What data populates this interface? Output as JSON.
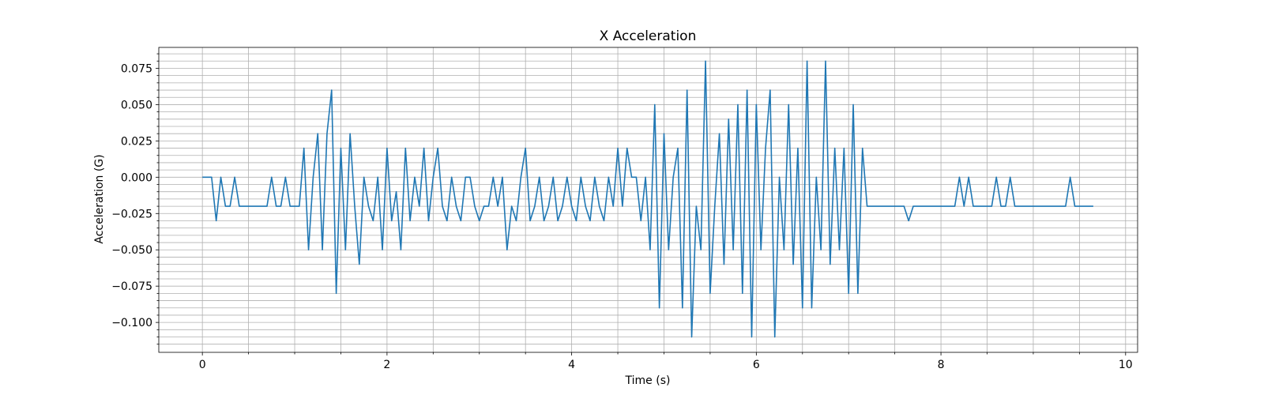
{
  "chart_data": {
    "type": "line",
    "title": "X Acceleration",
    "xlabel": "Time (s)",
    "ylabel": "Acceleration (G)",
    "x": [
      0,
      0.05,
      0.1,
      0.15,
      0.2,
      0.25,
      0.3,
      0.35,
      0.4,
      0.45,
      0.5,
      0.55,
      0.6,
      0.65,
      0.7,
      0.75,
      0.8,
      0.85,
      0.9,
      0.95,
      1,
      1.05,
      1.1,
      1.15,
      1.2,
      1.25,
      1.3,
      1.35,
      1.4,
      1.45,
      1.5,
      1.55,
      1.6,
      1.65,
      1.7,
      1.75,
      1.8,
      1.85,
      1.9,
      1.95,
      2,
      2.05,
      2.1,
      2.15,
      2.2,
      2.25,
      2.3,
      2.35,
      2.4,
      2.45,
      2.5,
      2.55,
      2.6,
      2.65,
      2.7,
      2.75,
      2.8,
      2.85,
      2.9,
      2.95,
      3,
      3.05,
      3.1,
      3.15,
      3.2,
      3.25,
      3.3,
      3.35,
      3.4,
      3.45,
      3.5,
      3.55,
      3.6,
      3.65,
      3.7,
      3.75,
      3.8,
      3.85,
      3.9,
      3.95,
      4,
      4.05,
      4.1,
      4.15,
      4.2,
      4.25,
      4.3,
      4.35,
      4.4,
      4.45,
      4.5,
      4.55,
      4.6,
      4.65,
      4.7,
      4.75,
      4.8,
      4.85,
      4.9,
      4.95,
      5,
      5.05,
      5.1,
      5.15,
      5.2,
      5.25,
      5.3,
      5.35,
      5.4,
      5.45,
      5.5,
      5.55,
      5.6,
      5.65,
      5.7,
      5.75,
      5.8,
      5.85,
      5.9,
      5.95,
      6,
      6.05,
      6.1,
      6.15,
      6.2,
      6.25,
      6.3,
      6.35,
      6.4,
      6.45,
      6.5,
      6.55,
      6.6,
      6.65,
      6.7,
      6.75,
      6.8,
      6.85,
      6.9,
      6.95,
      7,
      7.05,
      7.1,
      7.15,
      7.2,
      7.25,
      7.3,
      7.35,
      7.4,
      7.45,
      7.5,
      7.55,
      7.6,
      7.65,
      7.7,
      7.75,
      7.8,
      7.85,
      7.9,
      7.95,
      8,
      8.05,
      8.1,
      8.15,
      8.2,
      8.25,
      8.3,
      8.35,
      8.4,
      8.45,
      8.5,
      8.55,
      8.6,
      8.65,
      8.7,
      8.75,
      8.8,
      8.85,
      8.9,
      8.95,
      9,
      9.05,
      9.1,
      9.15,
      9.2,
      9.25,
      9.3,
      9.35,
      9.4,
      9.45,
      9.5,
      9.55,
      9.6,
      9.65
    ],
    "series": [
      {
        "color": "#1f77b4",
        "values": [
          0,
          0,
          0,
          -0.03,
          0,
          -0.02,
          -0.02,
          0,
          -0.02,
          -0.02,
          -0.02,
          -0.02,
          -0.02,
          -0.02,
          -0.02,
          0,
          -0.02,
          -0.02,
          0,
          -0.02,
          -0.02,
          -0.02,
          0.02,
          -0.05,
          0,
          0.03,
          -0.05,
          0.03,
          0.06,
          -0.08,
          0.02,
          -0.05,
          0.03,
          -0.02,
          -0.06,
          0,
          -0.02,
          -0.03,
          0,
          -0.05,
          0.02,
          -0.03,
          -0.01,
          -0.05,
          0.02,
          -0.03,
          0,
          -0.02,
          0.02,
          -0.03,
          0,
          0.02,
          -0.02,
          -0.03,
          0,
          -0.02,
          -0.03,
          0,
          0,
          -0.02,
          -0.03,
          -0.02,
          -0.02,
          0,
          -0.02,
          0,
          -0.05,
          -0.02,
          -0.03,
          0,
          0.02,
          -0.03,
          -0.02,
          0,
          -0.03,
          -0.02,
          0,
          -0.03,
          -0.02,
          0,
          -0.02,
          -0.03,
          0,
          -0.02,
          -0.03,
          0,
          -0.02,
          -0.03,
          0,
          -0.02,
          0.02,
          -0.02,
          0.02,
          0,
          0,
          -0.03,
          0,
          -0.05,
          0.05,
          -0.09,
          0.03,
          -0.05,
          0,
          0.02,
          -0.09,
          0.06,
          -0.11,
          -0.02,
          -0.05,
          0.08,
          -0.08,
          -0.02,
          0.03,
          -0.06,
          0.04,
          -0.05,
          0.05,
          -0.08,
          0.06,
          -0.11,
          0.05,
          -0.05,
          0.02,
          0.06,
          -0.11,
          0,
          -0.05,
          0.05,
          -0.06,
          0.02,
          -0.09,
          0.08,
          -0.09,
          0,
          -0.05,
          0.08,
          -0.06,
          0.02,
          -0.05,
          0.02,
          -0.08,
          0.05,
          -0.08,
          0.02,
          -0.02,
          -0.02,
          -0.02,
          -0.02,
          -0.02,
          -0.02,
          -0.02,
          -0.02,
          -0.02,
          -0.03,
          -0.02,
          -0.02,
          -0.02,
          -0.02,
          -0.02,
          -0.02,
          -0.02,
          -0.02,
          -0.02,
          -0.02,
          0,
          -0.02,
          0,
          -0.02,
          -0.02,
          -0.02,
          -0.02,
          -0.02,
          0,
          -0.02,
          -0.02,
          0,
          -0.02,
          -0.02,
          -0.02,
          -0.02,
          -0.02,
          -0.02,
          -0.02,
          -0.02,
          -0.02,
          -0.02,
          -0.02,
          -0.02,
          0,
          -0.02,
          -0.02,
          -0.02,
          -0.02,
          -0.02
        ]
      }
    ],
    "xlim": [
      -0.472,
      10.13
    ],
    "ylim": [
      -0.1206,
      0.0894
    ],
    "xticks": [
      0,
      2,
      4,
      6,
      8,
      10
    ],
    "yticks": [
      {
        "value": -0.1,
        "label": "−0.100"
      },
      {
        "value": -0.075,
        "label": "−0.075"
      },
      {
        "value": -0.05,
        "label": "−0.050"
      },
      {
        "value": -0.025,
        "label": "−0.025"
      },
      {
        "value": 0,
        "label": "0.000"
      },
      {
        "value": 0.025,
        "label": "0.025"
      },
      {
        "value": 0.05,
        "label": "0.050"
      },
      {
        "value": 0.075,
        "label": "0.075"
      }
    ],
    "xminorticks": [
      0.5,
      1,
      1.5,
      2.5,
      3,
      3.5,
      4.5,
      5,
      5.5,
      6.5,
      7,
      7.5,
      8.5,
      9,
      9.5
    ],
    "yminorticks": [
      -0.115,
      -0.11,
      -0.105,
      -0.095,
      -0.09,
      -0.085,
      -0.08,
      -0.07,
      -0.065,
      -0.06,
      -0.055,
      -0.045,
      -0.04,
      -0.035,
      -0.03,
      -0.02,
      -0.015,
      -0.01,
      -0.005,
      0.005,
      0.01,
      0.015,
      0.02,
      0.03,
      0.035,
      0.04,
      0.045,
      0.055,
      0.06,
      0.065,
      0.07,
      0.08,
      0.085
    ],
    "grid": true
  }
}
